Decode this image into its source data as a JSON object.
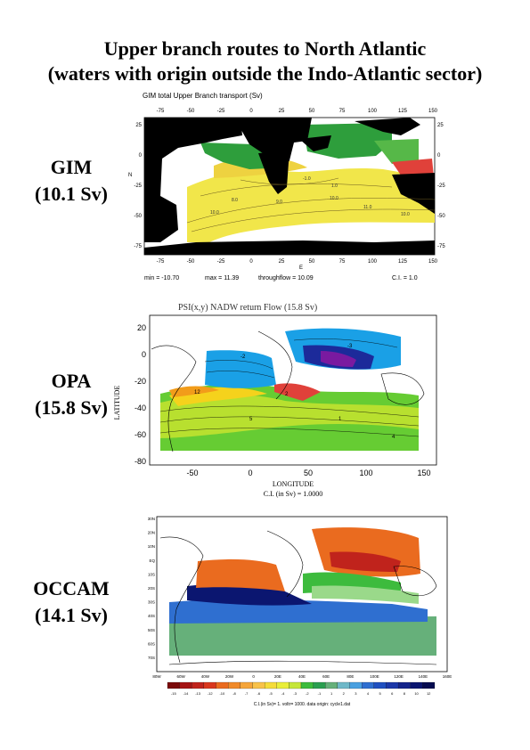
{
  "page": {
    "title_line1": "Upper branch routes to North Atlantic",
    "title_line2": "(waters with origin outside the Indo-Atlantic sector)"
  },
  "gim": {
    "label": "GIM",
    "value": "(10.1 Sv)",
    "plot_title": "GIM total Upper Branch transport (Sv)",
    "x_ticks": [
      "-75",
      "-50",
      "-25",
      "0",
      "25",
      "50",
      "75",
      "100",
      "125",
      "150"
    ],
    "y_ticks": [
      "25",
      "0",
      "-25",
      "-50",
      "-75"
    ],
    "y_axis_label": "N",
    "x_axis_label": "E",
    "stats": {
      "min": "min =  -10.70",
      "max": "max =  11.39",
      "throughflow": "throughflow = 10.09",
      "ci": "C.I. = 1.0"
    },
    "contour_labels": [
      "-1.0",
      "1.0",
      "8.0",
      "9.0",
      "10.0",
      "10.0",
      "11.0",
      "10.0"
    ]
  },
  "opa": {
    "label": "OPA",
    "value": "(15.8 Sv)",
    "plot_title": "PSI(x,y)  NADW return Flow (15.8 Sv)",
    "x_ticks": [
      "-50",
      "0",
      "50",
      "100",
      "150"
    ],
    "y_ticks": [
      "20",
      "0",
      "-20",
      "-40",
      "-60",
      "-80"
    ],
    "y_axis_label": "LATITUDE",
    "x_axis_label": "LONGITUDE",
    "ci_text": "C.I. (in Sv) =  1.0000",
    "contour_labels": [
      "12",
      "-2",
      "2",
      "5",
      "1",
      "4",
      "-3"
    ]
  },
  "occam": {
    "label": "OCCAM",
    "value": "(14.1 Sv)",
    "x_ticks": [
      "80W",
      "60W",
      "40W",
      "20W",
      "0",
      "20E",
      "40E",
      "60E",
      "80E",
      "100E",
      "120E",
      "140E",
      "160E"
    ],
    "y_ticks": [
      "30N",
      "20N",
      "10N",
      "EQ",
      "10S",
      "20S",
      "30S",
      "40S",
      "50S",
      "60S",
      "70S"
    ],
    "colorbar_labels": [
      "-15",
      "-14",
      "-13",
      "-12",
      "-10",
      "-8",
      "-7",
      "-6",
      "-5",
      "-4",
      "-3",
      "-2",
      "-1",
      "1",
      "2",
      "3",
      "4",
      "5",
      "6",
      "8",
      "10",
      "12"
    ],
    "footer": "C.I.(in Sv)=  1.   voltr=  1000.   data origin: cycle1.dat"
  },
  "colors": {
    "black_land": "#000000",
    "gim_green": "#2e9e3c",
    "gim_yellow": "#f1e64a",
    "gim_red": "#e0413a",
    "opa_blue": "#1aa0e6",
    "opa_green": "#66cc33",
    "occam_orange": "#ea6b1f",
    "occam_navy": "#0b1670"
  }
}
